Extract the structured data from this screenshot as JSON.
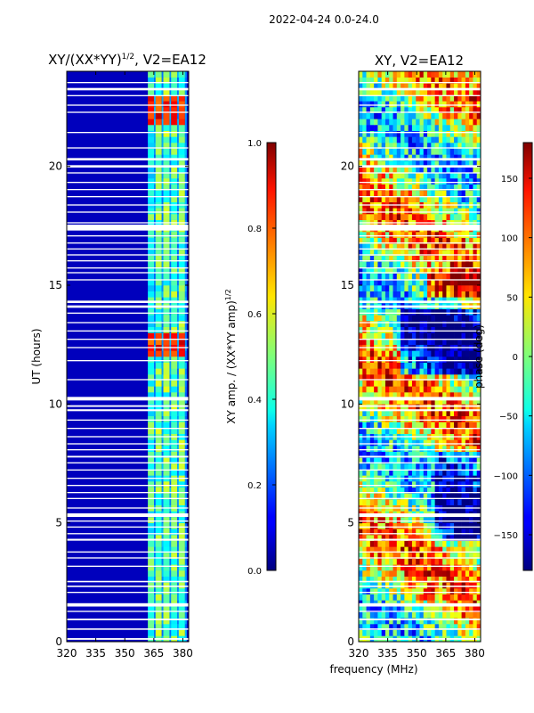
{
  "figure_title": "2022-04-24 0.0-24.0",
  "chart_data": [
    {
      "type": "heatmap",
      "id": "amp",
      "title": "XY/(XX*YY)",
      "title_sup": "1/2",
      "title_suffix": ", V2=EA12",
      "xlabel": "",
      "ylabel": "UT (hours)",
      "xlim": [
        320,
        383
      ],
      "ylim": [
        0,
        24
      ],
      "xticks": [
        320,
        335,
        350,
        365,
        380
      ],
      "yticks": [
        0,
        5,
        10,
        15,
        20
      ],
      "bright_columns_mhz": [
        363.5,
        367.5,
        371.5,
        375.5,
        379.5
      ],
      "colorbar": {
        "label": "XY amp. / (XX*YY amp)",
        "label_sup": "1/2",
        "range": [
          0.0,
          1.0
        ],
        "ticks": [
          "0.0",
          "0.2",
          "0.4",
          "0.6",
          "0.8",
          "1.0"
        ],
        "tick_values": [
          0.0,
          0.2,
          0.4,
          0.6,
          0.8,
          1.0
        ]
      },
      "colormap": "jet"
    },
    {
      "type": "heatmap",
      "id": "phase",
      "title": "XY, V2=EA12",
      "xlabel": "frequency (MHz)",
      "ylabel": "",
      "xlim": [
        320,
        383
      ],
      "ylim": [
        0,
        24
      ],
      "xticks": [
        320,
        335,
        350,
        365,
        380
      ],
      "yticks": [
        0,
        5,
        10,
        15,
        20
      ],
      "colorbar": {
        "label": "phase (deg)",
        "range": [
          -180,
          180
        ],
        "ticks": [
          "150",
          "100",
          "50",
          "0",
          "−50",
          "−100",
          "−150"
        ],
        "tick_values": [
          150,
          100,
          50,
          0,
          -50,
          -100,
          -150
        ]
      },
      "colormap": "jet"
    }
  ],
  "flag_gaps_ut_hours": [
    [
      0.08,
      0.15
    ],
    [
      0.5,
      0.56
    ],
    [
      0.9,
      0.97
    ],
    [
      1.25,
      1.3
    ],
    [
      1.48,
      1.62
    ],
    [
      2.05,
      2.1
    ],
    [
      2.3,
      2.36
    ],
    [
      2.5,
      2.56
    ],
    [
      3.15,
      3.2
    ],
    [
      3.5,
      3.55
    ],
    [
      3.75,
      3.8
    ],
    [
      4.25,
      4.33
    ],
    [
      4.52,
      4.57
    ],
    [
      4.8,
      4.85
    ],
    [
      5.05,
      5.1
    ],
    [
      5.25,
      5.4
    ],
    [
      5.6,
      5.65
    ],
    [
      6.0,
      6.05
    ],
    [
      6.25,
      6.3
    ],
    [
      6.55,
      6.6
    ],
    [
      6.85,
      6.9
    ],
    [
      7.2,
      7.25
    ],
    [
      7.5,
      7.55
    ],
    [
      7.75,
      7.82
    ],
    [
      8.05,
      8.1
    ],
    [
      8.3,
      8.35
    ],
    [
      8.6,
      8.65
    ],
    [
      8.95,
      9.0
    ],
    [
      9.3,
      9.35
    ],
    [
      9.7,
      9.78
    ],
    [
      9.88,
      9.95
    ],
    [
      10.15,
      10.3
    ],
    [
      11.0,
      11.05
    ],
    [
      11.8,
      11.85
    ],
    [
      12.35,
      12.4
    ],
    [
      12.7,
      12.75
    ],
    [
      13.05,
      13.1
    ],
    [
      13.4,
      13.45
    ],
    [
      13.8,
      13.85
    ],
    [
      14.05,
      14.15
    ],
    [
      14.25,
      14.35
    ],
    [
      15.2,
      15.25
    ],
    [
      15.5,
      15.55
    ],
    [
      15.7,
      15.75
    ],
    [
      16.0,
      16.05
    ],
    [
      16.25,
      16.3
    ],
    [
      16.5,
      16.55
    ],
    [
      16.75,
      16.8
    ],
    [
      17.05,
      17.1
    ],
    [
      17.3,
      17.55
    ],
    [
      17.6,
      17.65
    ],
    [
      18.05,
      18.1
    ],
    [
      18.35,
      18.4
    ],
    [
      18.7,
      18.75
    ],
    [
      19.0,
      19.05
    ],
    [
      19.3,
      19.35
    ],
    [
      19.7,
      19.75
    ],
    [
      19.95,
      20.05
    ],
    [
      20.25,
      20.35
    ],
    [
      20.75,
      20.8
    ],
    [
      21.4,
      21.45
    ],
    [
      22.25,
      22.3
    ],
    [
      22.55,
      22.6
    ],
    [
      22.95,
      23.0
    ],
    [
      23.2,
      23.3
    ],
    [
      23.5,
      23.55
    ]
  ]
}
